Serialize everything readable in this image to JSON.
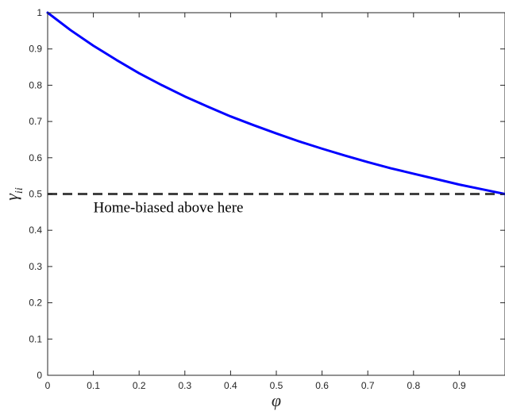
{
  "chart_data": {
    "type": "line",
    "title": "",
    "xlabel": "φ",
    "ylabel": "γ",
    "ylabel_subscript": "ii",
    "xlim": [
      0,
      1
    ],
    "ylim": [
      0,
      1
    ],
    "x_ticks": [
      0,
      0.1,
      0.2,
      0.3,
      0.4,
      0.5,
      0.6,
      0.7,
      0.8,
      0.9
    ],
    "x_tick_labels": [
      "0",
      "0.1",
      "0.2",
      "0.3",
      "0.4",
      "0.5",
      "0.6",
      "0.7",
      "0.8",
      "0.9"
    ],
    "y_ticks": [
      0,
      0.1,
      0.2,
      0.3,
      0.4,
      0.5,
      0.6,
      0.7,
      0.8,
      0.9,
      1
    ],
    "y_tick_labels": [
      "0",
      "0.1",
      "0.2",
      "0.3",
      "0.4",
      "0.5",
      "0.6",
      "0.7",
      "0.8",
      "0.9",
      "1"
    ],
    "grid": false,
    "series": [
      {
        "color": "#0000ff",
        "line_style": "solid",
        "x": [
          0,
          0.05,
          0.1,
          0.15,
          0.2,
          0.25,
          0.3,
          0.35,
          0.4,
          0.45,
          0.5,
          0.55,
          0.6,
          0.65,
          0.7,
          0.75,
          0.8,
          0.85,
          0.9,
          0.95,
          1.0
        ],
        "values": [
          1.0,
          0.952,
          0.909,
          0.87,
          0.833,
          0.8,
          0.769,
          0.741,
          0.714,
          0.69,
          0.667,
          0.645,
          0.625,
          0.606,
          0.588,
          0.571,
          0.556,
          0.541,
          0.526,
          0.513,
          0.5
        ]
      }
    ],
    "reference_lines": [
      {
        "axis": "y",
        "value": 0.5,
        "color": "#404040",
        "line_style": "dashed"
      }
    ],
    "annotations": [
      {
        "text": "Home-biased above here",
        "x": 0.1,
        "y": 0.45
      }
    ]
  }
}
